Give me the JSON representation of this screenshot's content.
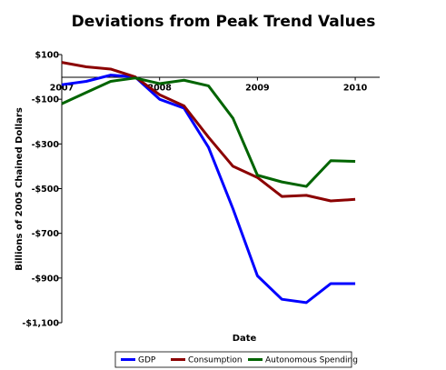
{
  "chart_data": {
    "type": "line",
    "title": "Deviations from Peak Trend Values",
    "xlabel": "Date",
    "ylabel": "Billions of 2005 Chained Dollars",
    "x_tick_labels": [
      "2007",
      "2008",
      "2009",
      "2010"
    ],
    "y_tick_labels": [
      "$100",
      "-$100",
      "-$300",
      "-$500",
      "-$700",
      "-$900",
      "-$1,100"
    ],
    "ylim": [
      -1100,
      100
    ],
    "xlim": [
      2007.0,
      2010.25
    ],
    "grid": false,
    "legend_position": "bottom",
    "x": [
      2007.0,
      2007.25,
      2007.5,
      2007.75,
      2008.0,
      2008.25,
      2008.5,
      2008.75,
      2009.0,
      2009.25,
      2009.5,
      2009.75,
      2010.0
    ],
    "series": [
      {
        "name": "GDP",
        "color": "#0000ff",
        "values": [
          -35,
          -20,
          8,
          0,
          -100,
          -140,
          -315,
          -590,
          -890,
          -995,
          -1010,
          -925,
          -925
        ]
      },
      {
        "name": "Consumption",
        "color": "#8b0000",
        "values": [
          65,
          45,
          35,
          0,
          -80,
          -130,
          -270,
          -400,
          -450,
          -535,
          -530,
          -555,
          -548
        ]
      },
      {
        "name": "Autonomous Spending",
        "color": "#006400",
        "values": [
          -120,
          -70,
          -20,
          -5,
          -30,
          -15,
          -40,
          -185,
          -440,
          -470,
          -490,
          -375,
          -378
        ]
      }
    ]
  }
}
